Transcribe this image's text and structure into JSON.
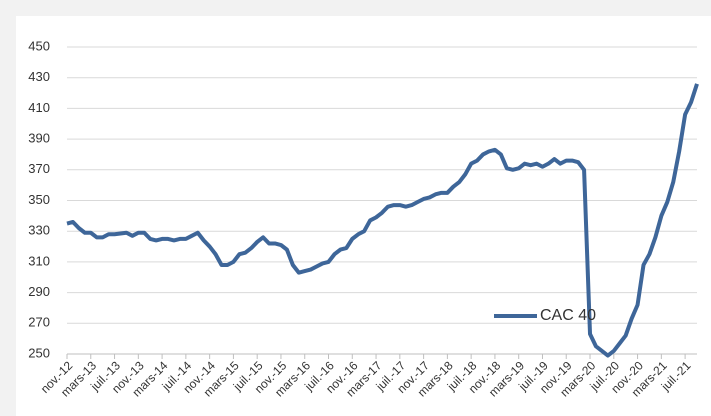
{
  "chart_data": {
    "type": "line",
    "categories": [
      "nov.-12",
      null,
      null,
      null,
      "mars-13",
      null,
      null,
      null,
      "juil.-13",
      null,
      null,
      null,
      "nov.-13",
      null,
      null,
      null,
      "mars-14",
      null,
      null,
      null,
      "juil.-14",
      null,
      null,
      null,
      "nov.-14",
      null,
      null,
      null,
      "mars-15",
      null,
      null,
      null,
      "juil.-15",
      null,
      null,
      null,
      "nov.-15",
      null,
      null,
      null,
      "mars-16",
      null,
      null,
      null,
      "juil.-16",
      null,
      null,
      null,
      "nov.-16",
      null,
      null,
      null,
      "mars-17",
      null,
      null,
      null,
      "juil.-17",
      null,
      null,
      null,
      "nov.-17",
      null,
      null,
      null,
      "mars-18",
      null,
      null,
      null,
      "juil.-18",
      null,
      null,
      null,
      "nov.-18",
      null,
      null,
      null,
      "mars-19",
      null,
      null,
      null,
      "juil.-19",
      null,
      null,
      null,
      "nov.-19",
      null,
      null,
      null,
      "mars-20",
      null,
      null,
      null,
      "juil.-20",
      null,
      null,
      null,
      "nov.-20",
      null,
      null,
      null,
      "mars-21",
      null,
      null,
      null,
      "juil.-21",
      null,
      null
    ],
    "series": [
      {
        "name": "CAC 40",
        "color": "#3e6699",
        "values": [
          335,
          336,
          332,
          329,
          329,
          326,
          326,
          328,
          328,
          328.5,
          329,
          327,
          329,
          329,
          325,
          324,
          325,
          325,
          324,
          325,
          325,
          327,
          329,
          324,
          320,
          315,
          308,
          308,
          310,
          315,
          316,
          319,
          323,
          326,
          322,
          322,
          321,
          318,
          308,
          303,
          304,
          305,
          307,
          309,
          310,
          315,
          318,
          319,
          325,
          328,
          330,
          337,
          339,
          342,
          346,
          347,
          347,
          346,
          347,
          349,
          351,
          352,
          354,
          355,
          355,
          359,
          362,
          367,
          374,
          376,
          380,
          382,
          383,
          380,
          371,
          370,
          371,
          374,
          373,
          374,
          372,
          374,
          377,
          374,
          376,
          376,
          375,
          370,
          263,
          255,
          252,
          249,
          252,
          257,
          262,
          273,
          282,
          308,
          315,
          326,
          340,
          349,
          362,
          382,
          406,
          414,
          426
        ]
      }
    ],
    "ylim": [
      250,
      450
    ],
    "yticks": [
      250,
      270,
      290,
      310,
      330,
      350,
      370,
      390,
      410,
      430,
      450
    ],
    "grid": true,
    "legend": "inside"
  }
}
